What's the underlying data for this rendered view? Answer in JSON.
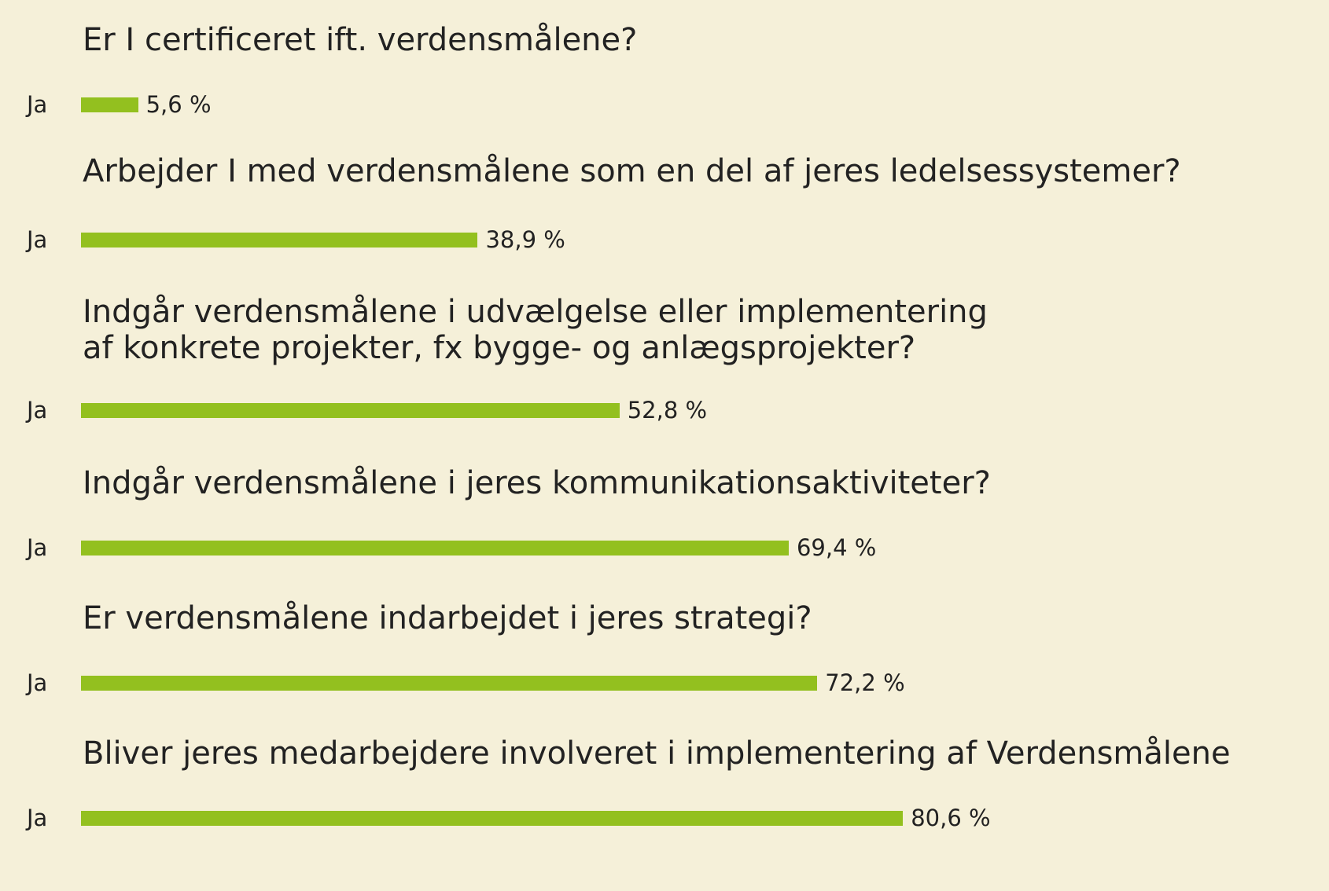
{
  "chart_data": {
    "type": "bar",
    "orientation": "horizontal",
    "xlim": [
      0,
      100
    ],
    "bar_color": "#93c01f",
    "background": "#f5f0d9",
    "groups": [
      {
        "question": "Er I certificeret ift. verdensmålene?",
        "category": "Ja",
        "value": 5.6,
        "value_label": "5,6 %"
      },
      {
        "question": "Arbejder I med verdensmålene som en del af jeres ledelsessystemer?",
        "category": "Ja",
        "value": 38.9,
        "value_label": "38,9 %"
      },
      {
        "question": "Indgår verdensmålene i udvælgelse eller implementering\naf konkrete projekter, fx bygge- og anlægsprojekter?",
        "category": "Ja",
        "value": 52.8,
        "value_label": "52,8 %"
      },
      {
        "question": "Indgår verdensmålene i jeres kommunikationsaktiviteter?",
        "category": "Ja",
        "value": 69.4,
        "value_label": "69,4 %"
      },
      {
        "question": "Er verdensmålene indarbejdet i jeres strategi?",
        "category": "Ja",
        "value": 72.2,
        "value_label": "72,2 %"
      },
      {
        "question": "Bliver jeres medarbejdere involveret i implementering af Verdensmålene",
        "category": "Ja",
        "value": 80.6,
        "value_label": "80,6 %"
      }
    ]
  }
}
